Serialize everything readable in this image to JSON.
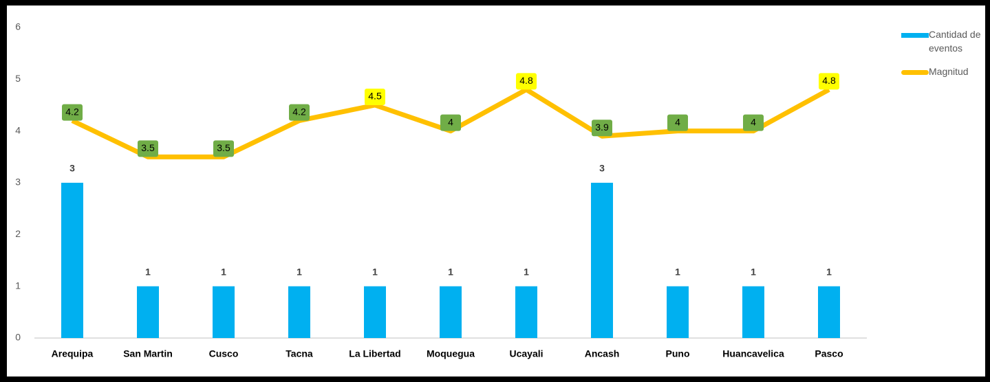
{
  "chart_data": {
    "type": "bar_line",
    "categories": [
      "Arequipa",
      "San Martin",
      "Cusco",
      "Tacna",
      "La Libertad",
      "Moquegua",
      "Ucayali",
      "Ancash",
      "Puno",
      "Huancavelica",
      "Pasco"
    ],
    "series": [
      {
        "name": "Cantidad de eventos",
        "type": "bar",
        "color": "#00b0f0",
        "values": [
          3,
          1,
          1,
          1,
          1,
          1,
          1,
          3,
          1,
          1,
          1
        ]
      },
      {
        "name": "Magnitud",
        "type": "line",
        "color": "#ffc000",
        "values": [
          4.2,
          3.5,
          3.5,
          4.2,
          4.5,
          4,
          4.8,
          3.9,
          4,
          4,
          4.8
        ],
        "label_colors": [
          "#70ad47",
          "#70ad47",
          "#70ad47",
          "#70ad47",
          "#ffff00",
          "#70ad47",
          "#ffff00",
          "#70ad47",
          "#70ad47",
          "#70ad47",
          "#ffff00"
        ]
      }
    ],
    "ylim": [
      0,
      6
    ],
    "yticks": [
      0,
      1,
      2,
      3,
      4,
      5,
      6
    ],
    "grid": false,
    "legend": "right"
  }
}
